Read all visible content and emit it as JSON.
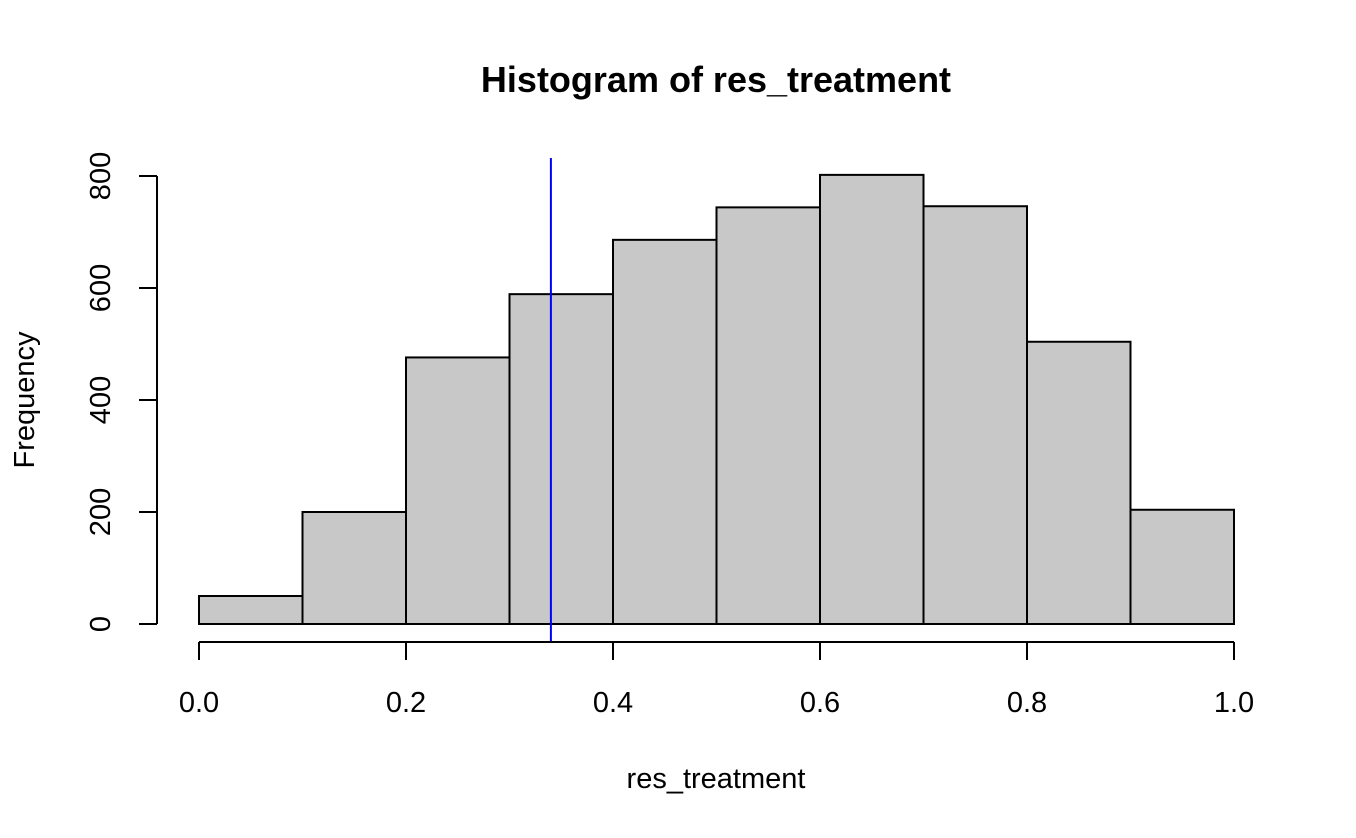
{
  "chart_data": {
    "type": "bar",
    "title": "Histogram of res_treatment",
    "xlabel": "res_treatment",
    "ylabel": "Frequency",
    "bins": [
      {
        "start": 0.0,
        "end": 0.1,
        "count": 50
      },
      {
        "start": 0.1,
        "end": 0.2,
        "count": 200
      },
      {
        "start": 0.2,
        "end": 0.3,
        "count": 476
      },
      {
        "start": 0.3,
        "end": 0.4,
        "count": 589
      },
      {
        "start": 0.4,
        "end": 0.5,
        "count": 686
      },
      {
        "start": 0.5,
        "end": 0.6,
        "count": 744
      },
      {
        "start": 0.6,
        "end": 0.7,
        "count": 802
      },
      {
        "start": 0.7,
        "end": 0.8,
        "count": 746
      },
      {
        "start": 0.8,
        "end": 0.9,
        "count": 504
      },
      {
        "start": 0.9,
        "end": 1.0,
        "count": 204
      }
    ],
    "xlim": [
      0.0,
      1.0
    ],
    "ylim": [
      0,
      800
    ],
    "x_ticks": [
      0.0,
      0.2,
      0.4,
      0.6,
      0.8,
      1.0
    ],
    "x_tick_labels": [
      "0.0",
      "0.2",
      "0.4",
      "0.6",
      "0.8",
      "1.0"
    ],
    "y_ticks": [
      0,
      200,
      400,
      600,
      800
    ],
    "y_tick_labels": [
      "0",
      "200",
      "400",
      "600",
      "800"
    ],
    "reference_line": {
      "x": 0.34,
      "color": "#0000ff"
    },
    "bar_fill": "#c8c8c8",
    "bar_stroke": "#000000",
    "grid": false,
    "legend": "none"
  }
}
